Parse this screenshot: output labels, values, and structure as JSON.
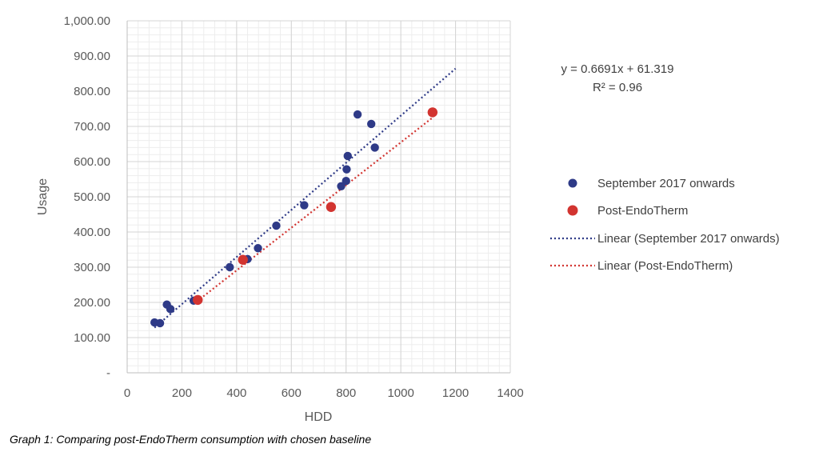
{
  "chart_data": {
    "type": "scatter",
    "xlabel": "HDD",
    "ylabel": "Usage",
    "xlim": [
      0,
      1400
    ],
    "ylim": [
      0,
      1000
    ],
    "x_ticks": [
      0,
      200,
      400,
      600,
      800,
      1000,
      1200,
      1400
    ],
    "x_tick_labels": [
      "0",
      "200",
      "400",
      "600",
      "800",
      "1000",
      "1200",
      "1400"
    ],
    "y_ticks": [
      0,
      100,
      200,
      300,
      400,
      500,
      600,
      700,
      800,
      900,
      1000
    ],
    "y_tick_labels": [
      "-",
      "100.00",
      "200.00",
      "300.00",
      "400.00",
      "500.00",
      "600.00",
      "700.00",
      "800.00",
      "900.00",
      "1,000.00"
    ],
    "grid": true,
    "legend_position": "right",
    "series": [
      {
        "name": "September 2017 onwards",
        "color": "#2E3A87",
        "points": [
          {
            "x": 100,
            "y": 143
          },
          {
            "x": 120,
            "y": 141
          },
          {
            "x": 145,
            "y": 194
          },
          {
            "x": 158,
            "y": 181
          },
          {
            "x": 243,
            "y": 205
          },
          {
            "x": 375,
            "y": 300
          },
          {
            "x": 440,
            "y": 323
          },
          {
            "x": 478,
            "y": 354
          },
          {
            "x": 545,
            "y": 418
          },
          {
            "x": 647,
            "y": 476
          },
          {
            "x": 782,
            "y": 530
          },
          {
            "x": 800,
            "y": 545
          },
          {
            "x": 802,
            "y": 578
          },
          {
            "x": 806,
            "y": 616
          },
          {
            "x": 842,
            "y": 734
          },
          {
            "x": 892,
            "y": 707
          },
          {
            "x": 905,
            "y": 640
          }
        ]
      },
      {
        "name": "Post-EndoTherm",
        "color": "#D23430",
        "points": [
          {
            "x": 258,
            "y": 207
          },
          {
            "x": 423,
            "y": 321
          },
          {
            "x": 745,
            "y": 471
          },
          {
            "x": 1116,
            "y": 740
          }
        ]
      }
    ],
    "trendlines": [
      {
        "name": "Linear (September 2017 onwards)",
        "color": "#2E3A87",
        "x_range": [
          100,
          1200
        ],
        "slope": 0.6691,
        "intercept": 61.319,
        "equation": "y = 0.6691x + 61.319",
        "r_squared": "R² = 0.96"
      },
      {
        "name": "Linear (Post-EndoTherm)",
        "color": "#D23430",
        "x_range": [
          255,
          1116
        ],
        "slope": 0.6062,
        "intercept": 48.4
      }
    ],
    "caption": "Graph 1: Comparing post-EndoTherm consumption with chosen baseline"
  }
}
